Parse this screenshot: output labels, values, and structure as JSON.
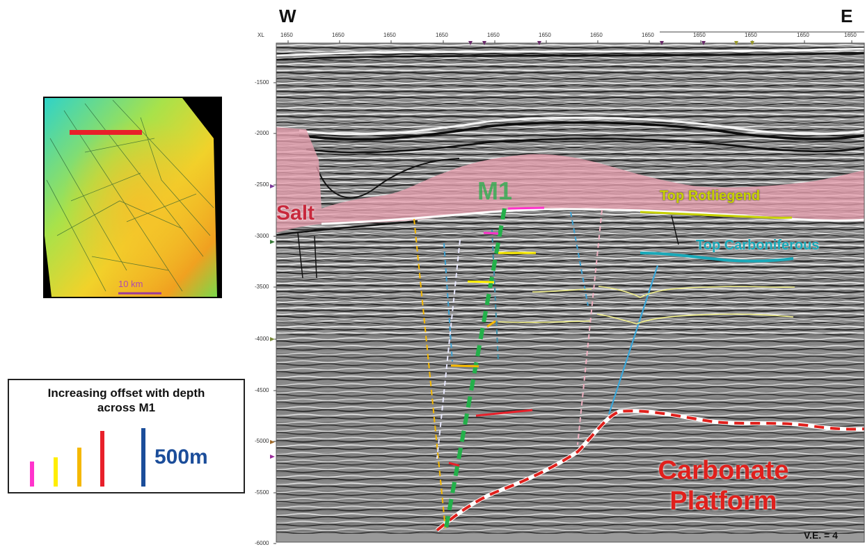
{
  "direction": {
    "west": "W",
    "east": "E"
  },
  "top_axis": {
    "label": "XL",
    "ticks": [
      "1650",
      "1650",
      "1650",
      "1650",
      "1650",
      "1650",
      "1650",
      "1650",
      "1650",
      "1650",
      "1650",
      "1650"
    ]
  },
  "depth_axis": {
    "ticks": [
      "-1500",
      "-2000",
      "-2500",
      "-3000",
      "-3500",
      "-4000",
      "-4500",
      "-5000",
      "-5500",
      "-6000"
    ]
  },
  "section_labels": {
    "salt": "Salt",
    "fault": "M1",
    "top_rotliegend": "Top Rotliegend",
    "top_carboniferous": "Top Carboniferous",
    "carbonate_line1": "Carbonate",
    "carbonate_line2": "Platform",
    "vertical_exaggeration": "V.E. = 4"
  },
  "inset_map": {
    "scale_label": "10 km"
  },
  "legend": {
    "title_line1": "Increasing offset with depth",
    "title_line2": "across M1",
    "scale_value": "500m",
    "bars": [
      {
        "color": "#ff33cc",
        "height": 36
      },
      {
        "color": "#ffee00",
        "height": 42
      },
      {
        "color": "#f5b800",
        "height": 56
      },
      {
        "color": "#e8202a",
        "height": 80
      },
      {
        "color": "#1b4d9a",
        "height": 84
      }
    ]
  },
  "colors": {
    "salt_fill": "#e8a0b0",
    "fault_green": "#23b04a",
    "rotliegend": "#c6d000",
    "carboniferous": "#19a8b8",
    "carbonate_red": "#e0201c",
    "offset_magenta": "#ff33cc",
    "offset_yellow": "#ffee00",
    "offset_orange": "#f5b800",
    "offset_red": "#e8202a"
  }
}
